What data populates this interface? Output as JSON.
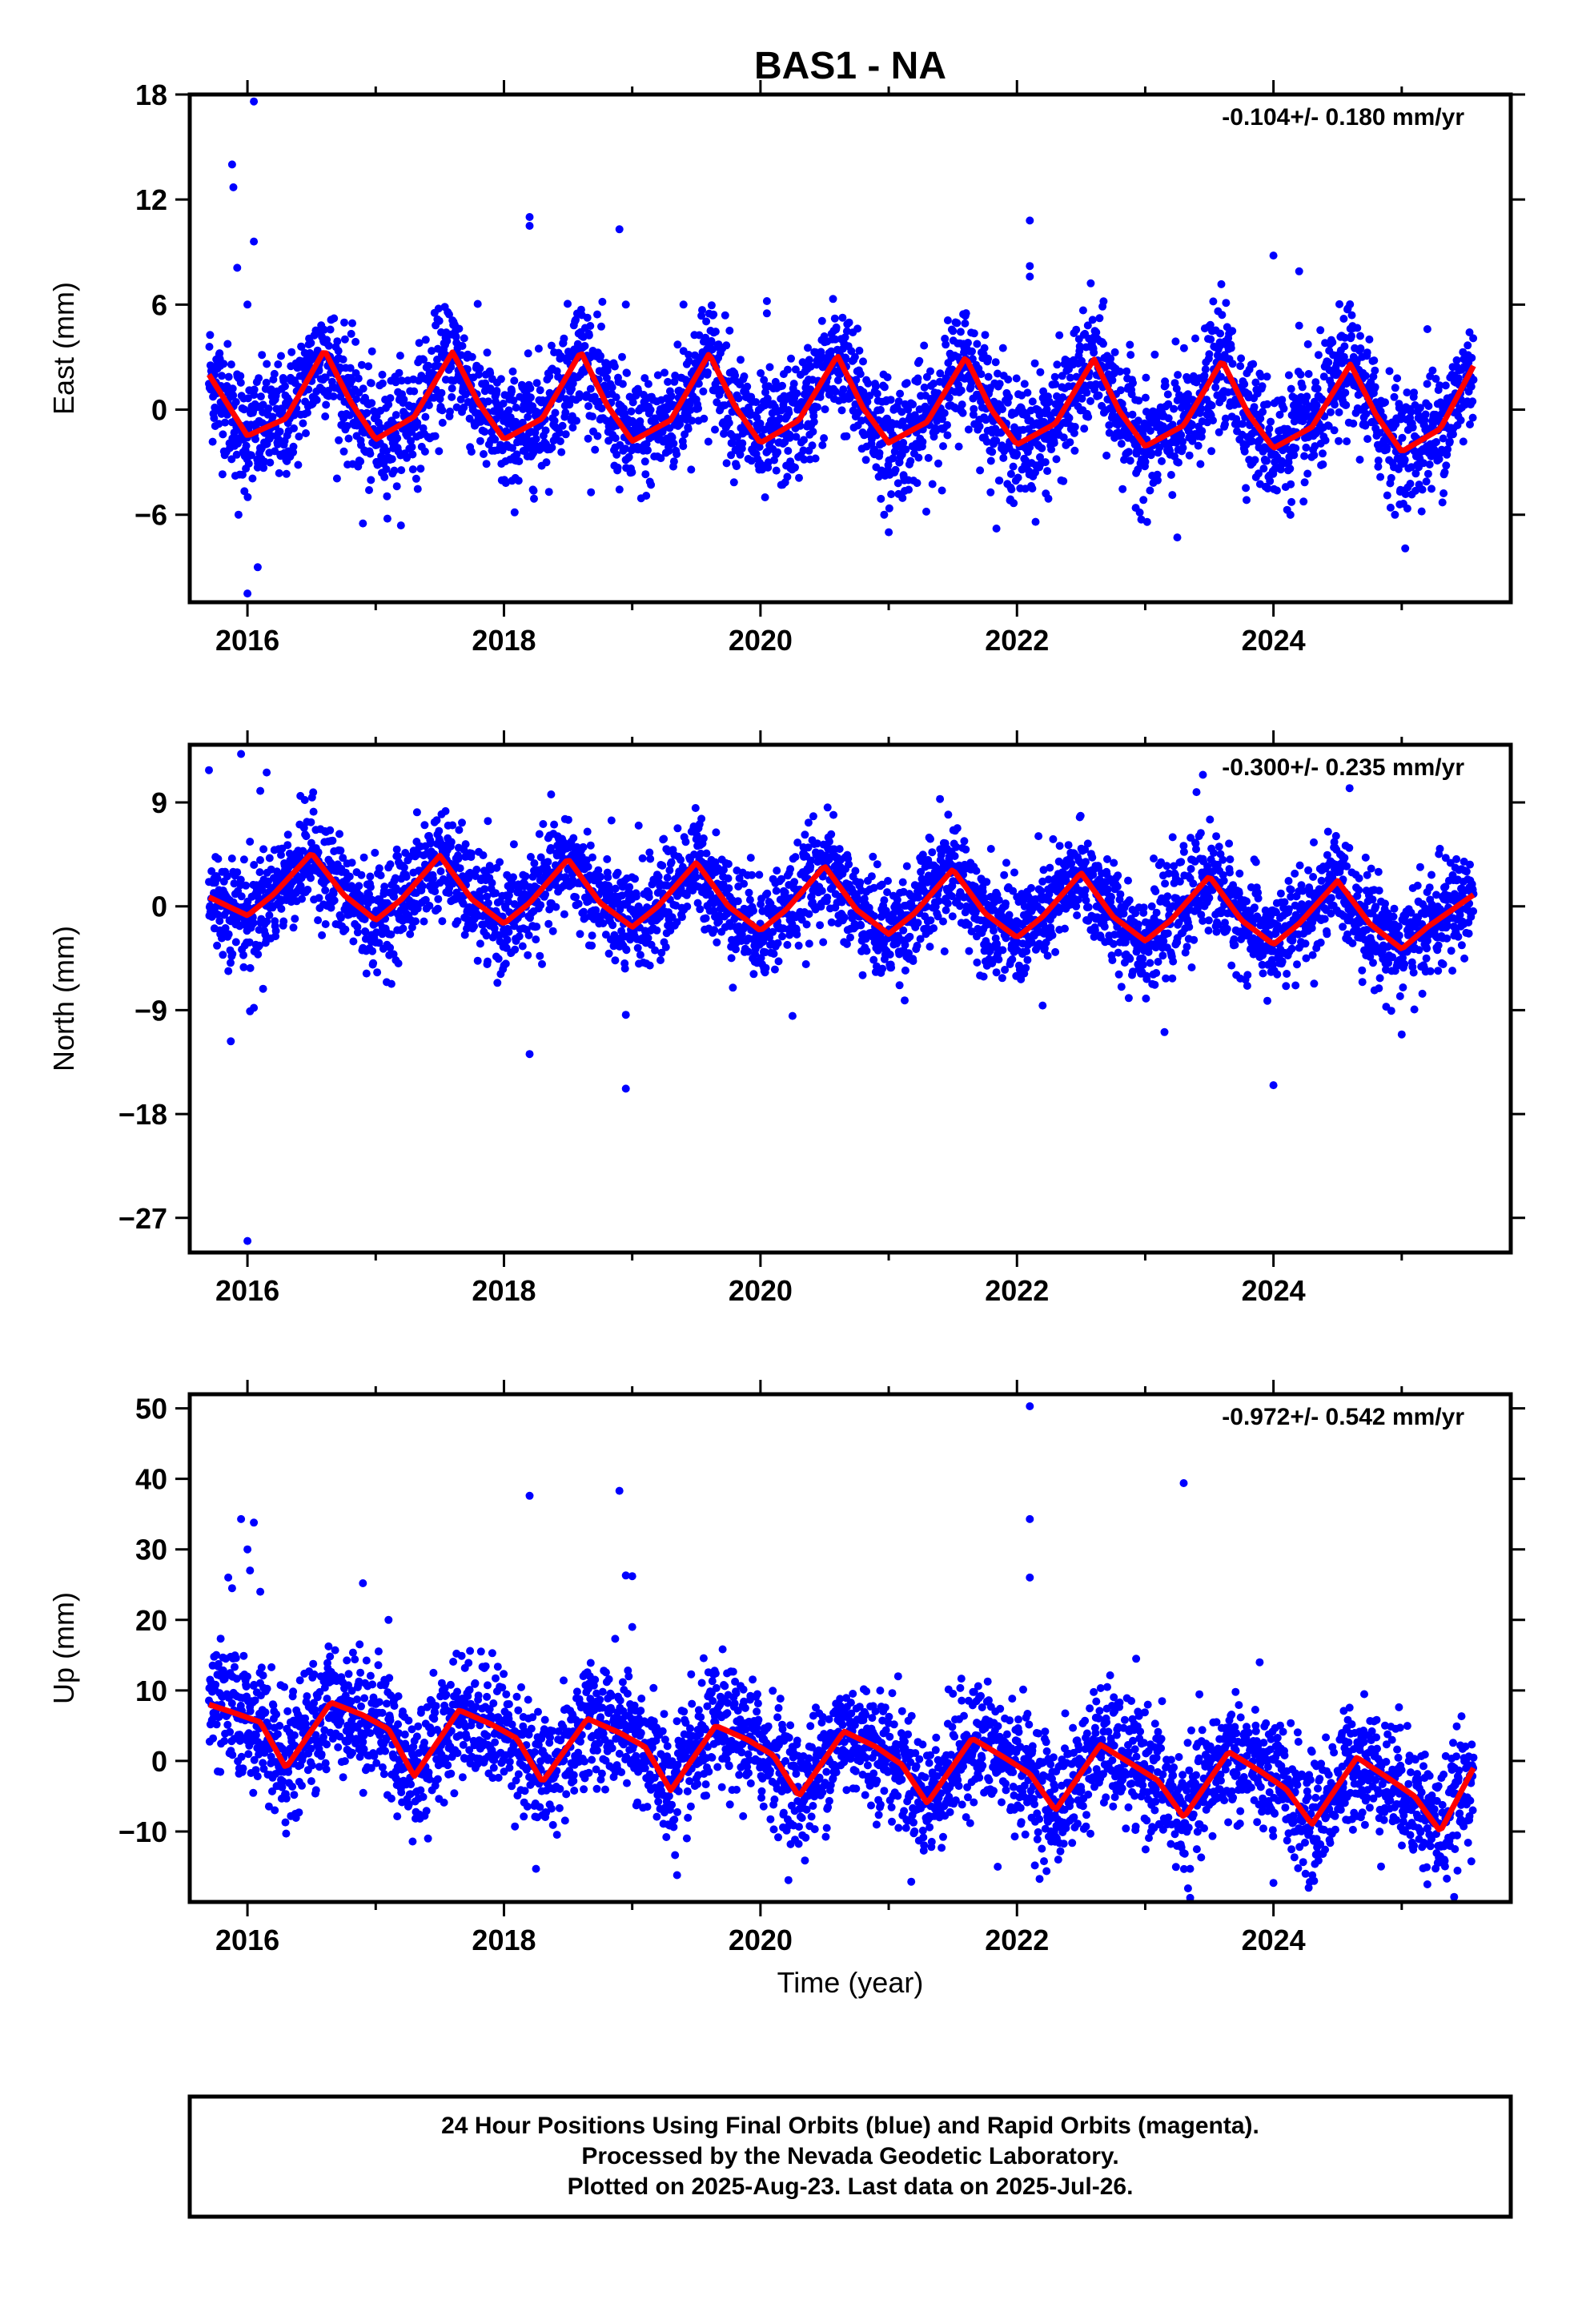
{
  "title": "BAS1 - NA",
  "colors": {
    "points": "#0000ff",
    "fit": "#ff0000",
    "frame": "#000000"
  },
  "x_tick_labels": [
    "2016",
    "2018",
    "2020",
    "2022",
    "2024"
  ],
  "xlabel": "Time (year)",
  "footer": {
    "line1": "24 Hour Positions Using Final Orbits (blue) and Rapid Orbits (magenta).",
    "line2": "Processed by the Nevada Geodetic Laboratory.",
    "line3": "Plotted on 2025-Aug-23. Last data on 2025-Jul-26."
  },
  "chart_data": [
    {
      "type": "scatter",
      "ylabel": "East (mm)",
      "rate": "-0.104+/- 0.180 mm/yr",
      "xlim": [
        2015.55,
        2025.85
      ],
      "ylim": [
        -11,
        18
      ],
      "xticks": [
        2016,
        2018,
        2020,
        2022,
        2024
      ],
      "yticks": [
        -6,
        0,
        6,
        12,
        18
      ],
      "ytick_labels": [
        "−6",
        "0",
        "6",
        "12",
        "18"
      ],
      "fit": {
        "type": "line",
        "x": [
          2015.7,
          2016.0,
          2016.3,
          2016.6,
          2016.8,
          2017.0,
          2017.3,
          2017.6,
          2017.8,
          2018.0,
          2018.3,
          2018.6,
          2018.8,
          2019.0,
          2019.3,
          2019.6,
          2019.8,
          2020.0,
          2020.3,
          2020.6,
          2020.8,
          2021.0,
          2021.3,
          2021.6,
          2021.8,
          2022.0,
          2022.3,
          2022.6,
          2022.8,
          2023.0,
          2023.3,
          2023.6,
          2023.8,
          2024.0,
          2024.3,
          2024.6,
          2024.8,
          2025.0,
          2025.3,
          2025.56
        ],
        "y": [
          2.0,
          -1.5,
          -0.5,
          3.4,
          0.5,
          -1.7,
          -0.4,
          3.3,
          0.4,
          -1.7,
          -0.5,
          3.3,
          0.3,
          -1.8,
          -0.6,
          3.2,
          0.2,
          -1.9,
          -0.6,
          3.1,
          0.1,
          -1.9,
          -0.7,
          3.0,
          0.0,
          -2.0,
          -0.8,
          2.9,
          -0.1,
          -2.1,
          -0.9,
          2.8,
          -0.2,
          -2.2,
          -1.0,
          2.6,
          -0.3,
          -2.4,
          -1.1,
          2.5
        ]
      },
      "outliers": {
        "x": [
          2015.88,
          2015.89,
          2015.92,
          2016.05,
          2016.0,
          2016.08,
          2016.0,
          2016.05,
          2015.93,
          2018.2,
          2018.2,
          2018.9,
          2018.95,
          2019.4,
          2020.05,
          2020.05,
          2021.0,
          2022.1,
          2022.1,
          2022.1,
          2023.25,
          2024.0,
          2024.2,
          2024.2,
          2025.2,
          2016.9
        ],
        "y": [
          14.0,
          12.7,
          8.1,
          17.6,
          -10.5,
          -9.0,
          6.0,
          9.6,
          -6.0,
          11.0,
          10.5,
          10.3,
          6.0,
          6.0,
          6.2,
          5.5,
          -7.0,
          10.8,
          8.2,
          7.6,
          -7.3,
          8.8,
          7.9,
          4.8,
          4.6,
          -6.5
        ]
      },
      "scatter_spread": 1.7,
      "n_points": 3460
    },
    {
      "type": "scatter",
      "ylabel": "North (mm)",
      "rate": "-0.300+/- 0.235 mm/yr",
      "xlim": [
        2015.55,
        2025.85
      ],
      "ylim": [
        -30,
        14
      ],
      "xticks": [
        2016,
        2018,
        2020,
        2022,
        2024
      ],
      "yticks": [
        -27,
        -18,
        -9,
        0,
        9
      ],
      "ytick_labels": [
        "−27",
        "−18",
        "−9",
        "0",
        "9"
      ],
      "fit": {
        "type": "line",
        "x": [
          2015.7,
          2016.0,
          2016.2,
          2016.5,
          2016.75,
          2017.0,
          2017.2,
          2017.5,
          2017.75,
          2018.0,
          2018.2,
          2018.5,
          2018.75,
          2019.0,
          2019.2,
          2019.5,
          2019.75,
          2020.0,
          2020.2,
          2020.5,
          2020.75,
          2021.0,
          2021.2,
          2021.5,
          2021.75,
          2022.0,
          2022.2,
          2022.5,
          2022.75,
          2023.0,
          2023.2,
          2023.5,
          2023.75,
          2024.0,
          2024.2,
          2024.5,
          2024.75,
          2025.0,
          2025.2,
          2025.56
        ],
        "y": [
          0.8,
          -0.8,
          1.0,
          4.6,
          1.0,
          -1.2,
          0.6,
          4.4,
          0.6,
          -1.5,
          0.3,
          4.1,
          0.3,
          -1.8,
          0.0,
          3.8,
          0.0,
          -2.1,
          -0.3,
          3.5,
          -0.3,
          -2.4,
          -0.6,
          3.2,
          -0.6,
          -2.7,
          -0.9,
          2.9,
          -0.9,
          -3.0,
          -1.2,
          2.6,
          -1.2,
          -3.3,
          -1.5,
          2.2,
          -1.5,
          -3.7,
          -1.8,
          1.0
        ]
      },
      "outliers": {
        "x": [
          2015.7,
          2015.95,
          2016.0,
          2016.15,
          2015.87,
          2016.02,
          2016.05,
          2016.1,
          2018.2,
          2018.95,
          2018.95,
          2019.05,
          2020.25,
          2021.4,
          2022.2,
          2023.15,
          2023.4,
          2023.45,
          2024.0,
          2025.0
        ],
        "y": [
          11.8,
          13.2,
          -29.0,
          11.6,
          -11.7,
          -9.1,
          -8.8,
          10.0,
          -12.8,
          -15.8,
          -9.4,
          7.0,
          -9.5,
          9.3,
          -8.6,
          -10.9,
          9.9,
          11.4,
          -15.5,
          -11.1
        ]
      },
      "scatter_spread": 2.2,
      "n_points": 3460
    },
    {
      "type": "scatter",
      "ylabel": "Up (mm)",
      "rate": "-0.972+/- 0.542 mm/yr",
      "xlim": [
        2015.55,
        2025.85
      ],
      "ylim": [
        -20,
        52
      ],
      "xticks": [
        2016,
        2018,
        2020,
        2022,
        2024
      ],
      "yticks": [
        -10,
        0,
        10,
        20,
        30,
        40,
        50
      ],
      "ytick_labels": [
        "−10",
        "0",
        "10",
        "20",
        "30",
        "40",
        "50"
      ],
      "fit": {
        "type": "line",
        "x": [
          2015.7,
          2015.9,
          2016.1,
          2016.3,
          2016.65,
          2016.9,
          2017.1,
          2017.3,
          2017.65,
          2017.9,
          2018.1,
          2018.3,
          2018.65,
          2018.9,
          2019.1,
          2019.3,
          2019.65,
          2019.9,
          2020.1,
          2020.3,
          2020.65,
          2020.9,
          2021.1,
          2021.3,
          2021.65,
          2021.9,
          2022.1,
          2022.3,
          2022.65,
          2022.9,
          2023.1,
          2023.3,
          2023.65,
          2023.9,
          2024.1,
          2024.3,
          2024.65,
          2024.9,
          2025.1,
          2025.3,
          2025.56
        ],
        "y": [
          8.0,
          6.8,
          5.5,
          -1.0,
          8.3,
          6.5,
          4.5,
          -2.2,
          7.2,
          5.2,
          3.2,
          -3.0,
          6.0,
          4.0,
          2.0,
          -4.2,
          5.0,
          3.0,
          0.8,
          -5.0,
          4.2,
          2.0,
          -0.5,
          -6.0,
          3.2,
          0.5,
          -1.8,
          -7.0,
          2.3,
          -0.5,
          -2.8,
          -8.0,
          1.3,
          -1.5,
          -4.0,
          -9.0,
          0.5,
          -2.5,
          -5.0,
          -10.0,
          -1.0
        ]
      },
      "outliers": {
        "x": [
          2015.85,
          2015.88,
          2015.95,
          2016.0,
          2016.05,
          2016.02,
          2016.1,
          2018.2,
          2018.9,
          2018.95,
          2019.0,
          2019.0,
          2022.1,
          2022.1,
          2022.1,
          2023.3,
          2016.9,
          2017.1,
          2018.25,
          2019.35,
          2021.85,
          2023.35,
          2024.0,
          2024.25,
          2025.2
        ],
        "y": [
          26.0,
          24.5,
          34.3,
          30.0,
          33.8,
          27.0,
          24.0,
          37.6,
          38.3,
          26.3,
          26.2,
          19.0,
          50.3,
          34.3,
          26.0,
          39.4,
          25.2,
          20.0,
          -15.3,
          -16.2,
          -15.0,
          -15.3,
          -17.3,
          -16.0,
          -17.5
        ]
      },
      "scatter_spread": 4.3,
      "n_points": 3460
    }
  ]
}
